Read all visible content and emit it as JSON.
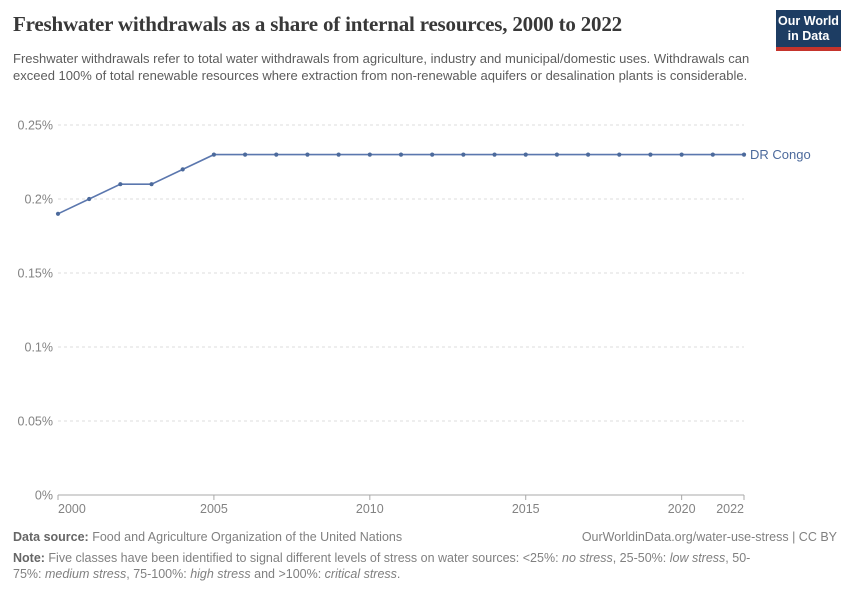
{
  "header": {
    "title": "Freshwater withdrawals as a share of internal resources, 2000 to 2022",
    "subtitle": "Freshwater withdrawals refer to total water withdrawals from agriculture, industry and municipal/domestic uses. Withdrawals can exceed 100% of total renewable resources where extraction from non-renewable aquifers or desalination plants is considerable.",
    "logo": {
      "line1": "Our World",
      "line2": "in Data",
      "bg_color": "#1d3d63",
      "stripe_color": "#c5342c"
    }
  },
  "chart_data": {
    "type": "line",
    "title": "Freshwater withdrawals as a share of internal resources, 2000 to 2022",
    "xlabel": "",
    "ylabel": "",
    "xlim": [
      2000,
      2022
    ],
    "ylim": [
      0,
      0.25
    ],
    "grid": "horizontal-dashed",
    "legend_position": "end-of-line-label",
    "x_ticks": [
      {
        "value": 2000,
        "label": "2000",
        "anchor": "start"
      },
      {
        "value": 2005,
        "label": "2005",
        "anchor": "middle"
      },
      {
        "value": 2010,
        "label": "2010",
        "anchor": "middle"
      },
      {
        "value": 2015,
        "label": "2015",
        "anchor": "middle"
      },
      {
        "value": 2020,
        "label": "2020",
        "anchor": "middle"
      },
      {
        "value": 2022,
        "label": "2022",
        "anchor": "end"
      }
    ],
    "y_ticks": [
      {
        "value": 0,
        "label": "0%"
      },
      {
        "value": 0.05,
        "label": "0.05%"
      },
      {
        "value": 0.1,
        "label": "0.1%"
      },
      {
        "value": 0.15,
        "label": "0.15%"
      },
      {
        "value": 0.2,
        "label": "0.2%"
      },
      {
        "value": 0.25,
        "label": "0.25%"
      }
    ],
    "series": [
      {
        "name": "DR Congo",
        "color": "#4C6A9C",
        "line_color": "#5b77ae",
        "x": [
          2000,
          2001,
          2002,
          2003,
          2004,
          2005,
          2006,
          2007,
          2008,
          2009,
          2010,
          2011,
          2012,
          2013,
          2014,
          2015,
          2016,
          2017,
          2018,
          2019,
          2020,
          2021,
          2022
        ],
        "values": [
          0.19,
          0.2,
          0.21,
          0.21,
          0.22,
          0.23,
          0.23,
          0.23,
          0.23,
          0.23,
          0.23,
          0.23,
          0.23,
          0.23,
          0.23,
          0.23,
          0.23,
          0.23,
          0.23,
          0.23,
          0.23,
          0.23,
          0.23
        ]
      }
    ],
    "colors": {
      "grid": "#dcdcdc",
      "axis": "#a8a8a8",
      "tick_label": "#838383"
    }
  },
  "footer": {
    "source_label": "Data source:",
    "source_text": " Food and Agriculture Organization of the United Nations",
    "attribution": "OurWorldinData.org/water-use-stress | CC BY",
    "note_parts": [
      {
        "text": "Note:"
      },
      {
        "text": " Five classes have been identified to signal different levels of stress on water sources: <25%: "
      },
      {
        "text": "no stress"
      },
      {
        "text": ", 25-50%: "
      },
      {
        "text": "low stress"
      },
      {
        "text": ", 50-75%: "
      },
      {
        "text": "medium stress"
      },
      {
        "text": ", 75-100%: "
      },
      {
        "text": "high stress"
      },
      {
        "text": " and >100%: "
      },
      {
        "text": "critical stress"
      },
      {
        "text": "."
      }
    ]
  }
}
